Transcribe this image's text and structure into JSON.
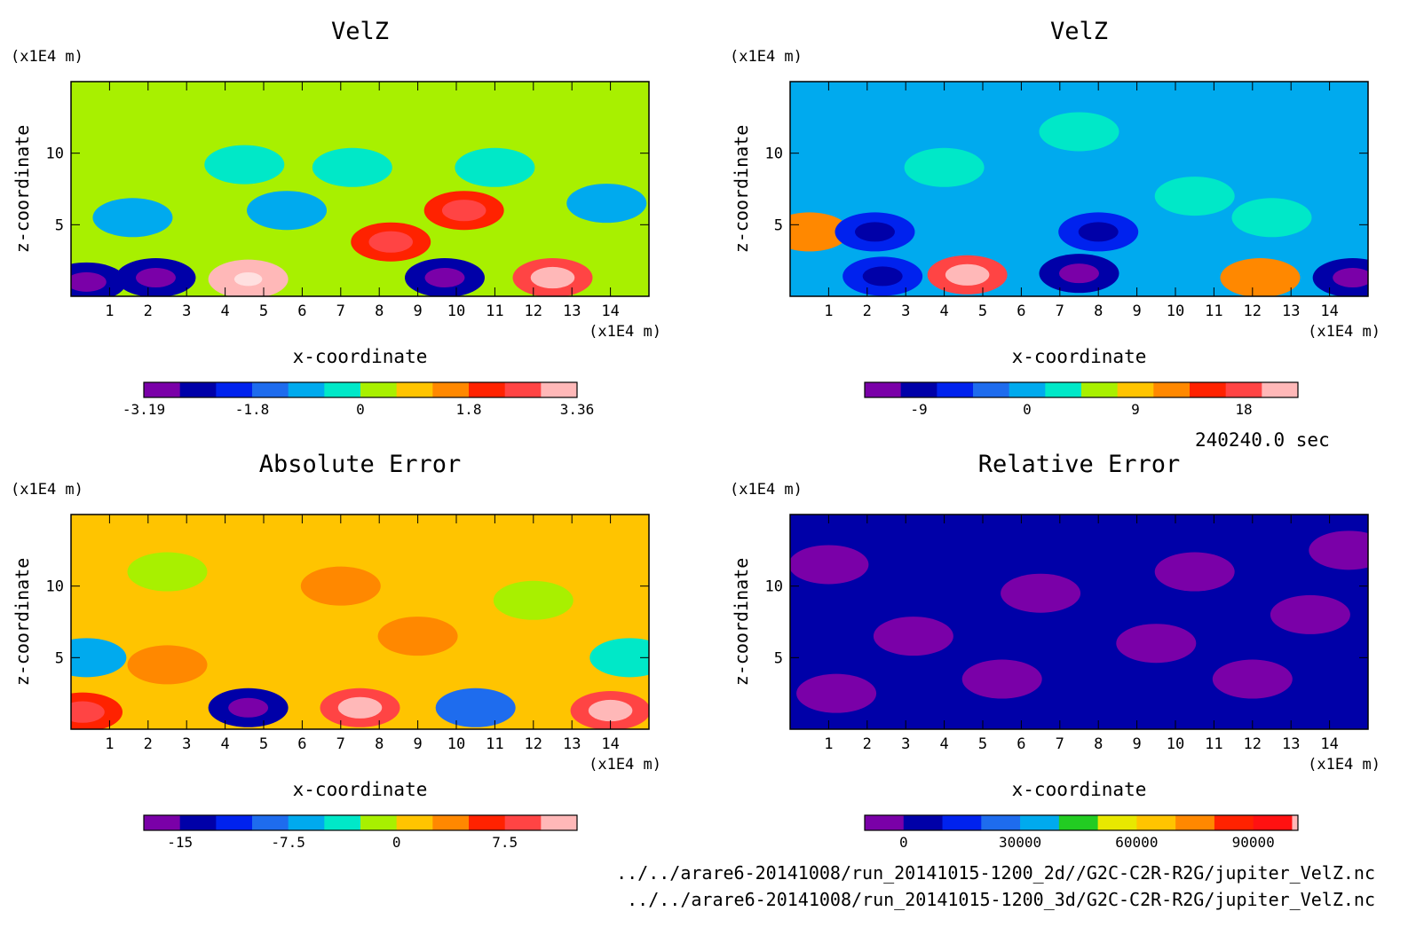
{
  "time_label": "240240.0 sec",
  "files": [
    "../../arare6-20141008/run_20141015-1200_2d//G2C-C2R-R2G/jupiter_VelZ.nc",
    "../../arare6-20141008/run_20141015-1200_3d/G2C-C2R-R2G/jupiter_VelZ.nc"
  ],
  "chart_data": [
    {
      "type": "heatmap",
      "title": "VelZ",
      "xlabel": "x-coordinate",
      "ylabel": "z-coordinate",
      "x_unit": "(x1E4 m)",
      "y_unit": "(x1E4 m)",
      "xlim": [
        0,
        15
      ],
      "ylim": [
        0,
        15
      ],
      "x_ticks": [
        1,
        2,
        3,
        4,
        5,
        6,
        7,
        8,
        9,
        10,
        11,
        12,
        13,
        14
      ],
      "y_ticks": [
        5,
        10
      ],
      "colorbar": {
        "colors": [
          "#7a00a8",
          "#0000a8",
          "#0022ee",
          "#1e6cee",
          "#00aaee",
          "#00e8c8",
          "#a8f000",
          "#ffc400",
          "#ff8800",
          "#ff2200",
          "#ff4444",
          "#ffb8b8"
        ],
        "tick_labels": [
          "-3.19",
          "-1.8",
          "0",
          "1.8",
          "3.36"
        ],
        "tick_at_boundary": [
          0,
          3,
          6,
          9,
          12
        ]
      },
      "background": 6,
      "blobs": [
        {
          "x": 4.6,
          "z": 1.2,
          "v": 11
        },
        {
          "x": 12.5,
          "z": 1.3,
          "v": 10
        },
        {
          "x": 10.2,
          "z": 6.0,
          "v": 9
        },
        {
          "x": 8.3,
          "z": 3.8,
          "v": 9
        },
        {
          "x": 2.2,
          "z": 1.3,
          "v": 1
        },
        {
          "x": 9.7,
          "z": 1.3,
          "v": 1
        },
        {
          "x": 0.4,
          "z": 1.0,
          "v": 1
        },
        {
          "x": 5.6,
          "z": 6.0,
          "v": 4
        },
        {
          "x": 1.6,
          "z": 5.5,
          "v": 4
        },
        {
          "x": 13.9,
          "z": 6.5,
          "v": 4
        },
        {
          "x": 4.5,
          "z": 9.2,
          "v": 5
        },
        {
          "x": 7.3,
          "z": 9.0,
          "v": 5
        },
        {
          "x": 11.0,
          "z": 9.0,
          "v": 5
        }
      ]
    },
    {
      "type": "heatmap",
      "title": "VelZ",
      "xlabel": "x-coordinate",
      "ylabel": "z-coordinate",
      "x_unit": "(x1E4 m)",
      "y_unit": "(x1E4 m)",
      "xlim": [
        0,
        15
      ],
      "ylim": [
        0,
        15
      ],
      "x_ticks": [
        1,
        2,
        3,
        4,
        5,
        6,
        7,
        8,
        9,
        10,
        11,
        12,
        13,
        14
      ],
      "y_ticks": [
        5,
        10
      ],
      "colorbar": {
        "colors": [
          "#7a00a8",
          "#0000a8",
          "#0022ee",
          "#1e6cee",
          "#00aaee",
          "#00e8c8",
          "#a8f000",
          "#ffc400",
          "#ff8800",
          "#ff2200",
          "#ff4444",
          "#ffb8b8"
        ],
        "tick_labels": [
          "-9",
          "0",
          "9",
          "18"
        ],
        "tick_at_boundary": [
          1.5,
          4.5,
          7.5,
          10.5
        ]
      },
      "background": 4,
      "blobs": [
        {
          "x": 4.6,
          "z": 1.5,
          "v": 10
        },
        {
          "x": 12.2,
          "z": 1.3,
          "v": 8
        },
        {
          "x": 7.5,
          "z": 1.6,
          "v": 1
        },
        {
          "x": 14.6,
          "z": 1.3,
          "v": 1
        },
        {
          "x": 2.4,
          "z": 1.4,
          "v": 2
        },
        {
          "x": 0.5,
          "z": 4.5,
          "v": 8
        },
        {
          "x": 2.2,
          "z": 4.5,
          "v": 2
        },
        {
          "x": 8.0,
          "z": 4.5,
          "v": 2
        },
        {
          "x": 12.5,
          "z": 5.5,
          "v": 5
        },
        {
          "x": 4.0,
          "z": 9.0,
          "v": 5
        },
        {
          "x": 10.5,
          "z": 7.0,
          "v": 5
        },
        {
          "x": 7.5,
          "z": 11.5,
          "v": 5
        }
      ]
    },
    {
      "type": "heatmap",
      "title": "Absolute Error",
      "xlabel": "x-coordinate",
      "ylabel": "z-coordinate",
      "x_unit": "(x1E4 m)",
      "y_unit": "(x1E4 m)",
      "xlim": [
        0,
        15
      ],
      "ylim": [
        0,
        15
      ],
      "x_ticks": [
        1,
        2,
        3,
        4,
        5,
        6,
        7,
        8,
        9,
        10,
        11,
        12,
        13,
        14
      ],
      "y_ticks": [
        5,
        10
      ],
      "colorbar": {
        "colors": [
          "#7a00a8",
          "#0000a8",
          "#0022ee",
          "#1e6cee",
          "#00aaee",
          "#00e8c8",
          "#a8f000",
          "#ffc400",
          "#ff8800",
          "#ff2200",
          "#ff4444",
          "#ffb8b8"
        ],
        "tick_labels": [
          "-15",
          "-7.5",
          "0",
          "7.5"
        ],
        "tick_at_boundary": [
          1,
          4,
          7,
          10
        ]
      },
      "background": 7,
      "blobs": [
        {
          "x": 4.6,
          "z": 1.5,
          "v": 1
        },
        {
          "x": 7.5,
          "z": 1.5,
          "v": 10
        },
        {
          "x": 14.0,
          "z": 1.3,
          "v": 10
        },
        {
          "x": 0.3,
          "z": 1.2,
          "v": 9
        },
        {
          "x": 10.5,
          "z": 1.5,
          "v": 3
        },
        {
          "x": 2.5,
          "z": 4.5,
          "v": 8
        },
        {
          "x": 9.0,
          "z": 6.5,
          "v": 8
        },
        {
          "x": 7.0,
          "z": 10.0,
          "v": 8
        },
        {
          "x": 2.5,
          "z": 11.0,
          "v": 6
        },
        {
          "x": 12.0,
          "z": 9.0,
          "v": 6
        },
        {
          "x": 0.4,
          "z": 5.0,
          "v": 4
        },
        {
          "x": 14.5,
          "z": 5.0,
          "v": 5
        }
      ]
    },
    {
      "type": "heatmap",
      "title": "Relative Error",
      "xlabel": "x-coordinate",
      "ylabel": "z-coordinate",
      "x_unit": "(x1E4 m)",
      "y_unit": "(x1E4 m)",
      "xlim": [
        0,
        15
      ],
      "ylim": [
        0,
        15
      ],
      "x_ticks": [
        1,
        2,
        3,
        4,
        5,
        6,
        7,
        8,
        9,
        10,
        11,
        12,
        13,
        14
      ],
      "y_ticks": [
        5,
        10
      ],
      "colorbar": {
        "colors": [
          "#7a00a8",
          "#0000a8",
          "#0022ee",
          "#1e6cee",
          "#00aaee",
          "#22cc22",
          "#e8e800",
          "#ffc400",
          "#ff8800",
          "#ff2200",
          "#ff1111",
          "#ffb8b8"
        ],
        "widths": [
          1,
          1,
          1,
          1,
          1,
          1,
          1,
          1,
          1,
          1,
          1,
          0.15
        ],
        "tick_labels": [
          "0",
          "30000",
          "60000",
          "90000"
        ],
        "tick_at_boundary": [
          1,
          4,
          7,
          10
        ]
      },
      "background": 1,
      "blobs": [
        {
          "x": 1.2,
          "z": 2.5,
          "v": 0
        },
        {
          "x": 3.2,
          "z": 6.5,
          "v": 0
        },
        {
          "x": 1.0,
          "z": 11.5,
          "v": 0
        },
        {
          "x": 5.5,
          "z": 3.5,
          "v": 0
        },
        {
          "x": 6.5,
          "z": 9.5,
          "v": 0
        },
        {
          "x": 9.5,
          "z": 6.0,
          "v": 0
        },
        {
          "x": 12.0,
          "z": 3.5,
          "v": 0
        },
        {
          "x": 13.5,
          "z": 8.0,
          "v": 0
        },
        {
          "x": 14.5,
          "z": 12.5,
          "v": 0
        },
        {
          "x": 10.5,
          "z": 11.0,
          "v": 0
        }
      ]
    }
  ]
}
